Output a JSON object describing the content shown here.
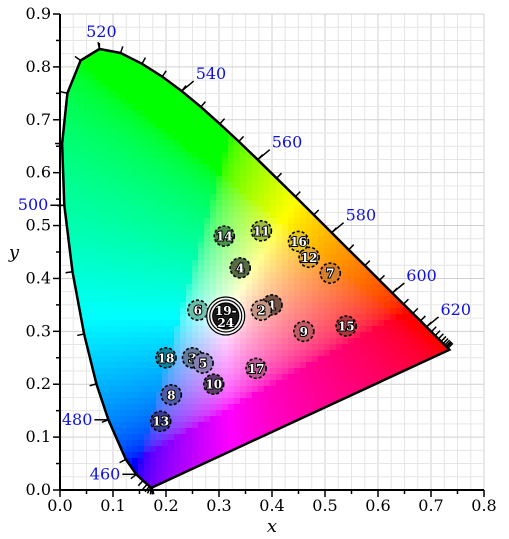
{
  "chart_data": {
    "type": "scatter",
    "title": "",
    "xlabel": "x",
    "ylabel": "y",
    "xlim": [
      0.0,
      0.8
    ],
    "ylim": [
      0.0,
      0.9
    ],
    "xticks": [
      "0.0",
      "0.1",
      "0.2",
      "0.3",
      "0.4",
      "0.5",
      "0.6",
      "0.7",
      "0.8"
    ],
    "yticks": [
      "0.0",
      "0.1",
      "0.2",
      "0.3",
      "0.4",
      "0.5",
      "0.6",
      "0.7",
      "0.8",
      "0.9"
    ],
    "grid": true,
    "spectral_locus": [
      [
        0.1741,
        0.005
      ],
      [
        0.1738,
        0.0049
      ],
      [
        0.1733,
        0.0048
      ],
      [
        0.1726,
        0.0048
      ],
      [
        0.1714,
        0.0051
      ],
      [
        0.1689,
        0.0069
      ],
      [
        0.1644,
        0.0109
      ],
      [
        0.1566,
        0.0177
      ],
      [
        0.144,
        0.0297
      ],
      [
        0.1241,
        0.0578
      ],
      [
        0.0913,
        0.1327
      ],
      [
        0.0687,
        0.2007
      ],
      [
        0.0454,
        0.295
      ],
      [
        0.0235,
        0.4127
      ],
      [
        0.0082,
        0.5384
      ],
      [
        0.0039,
        0.6548
      ],
      [
        0.0139,
        0.7502
      ],
      [
        0.0389,
        0.812
      ],
      [
        0.0743,
        0.8338
      ],
      [
        0.1142,
        0.8262
      ],
      [
        0.1547,
        0.8059
      ],
      [
        0.1929,
        0.7816
      ],
      [
        0.2296,
        0.7543
      ],
      [
        0.2658,
        0.7243
      ],
      [
        0.3016,
        0.6923
      ],
      [
        0.3373,
        0.6589
      ],
      [
        0.3731,
        0.6245
      ],
      [
        0.4087,
        0.5896
      ],
      [
        0.4441,
        0.5547
      ],
      [
        0.4788,
        0.5202
      ],
      [
        0.5125,
        0.4866
      ],
      [
        0.5448,
        0.4544
      ],
      [
        0.5752,
        0.4242
      ],
      [
        0.6029,
        0.3965
      ],
      [
        0.627,
        0.3725
      ],
      [
        0.6482,
        0.3514
      ],
      [
        0.6658,
        0.334
      ],
      [
        0.6801,
        0.3197
      ],
      [
        0.6915,
        0.3083
      ],
      [
        0.7006,
        0.2993
      ],
      [
        0.7079,
        0.292
      ],
      [
        0.714,
        0.2859
      ],
      [
        0.719,
        0.2809
      ],
      [
        0.723,
        0.277
      ],
      [
        0.726,
        0.274
      ],
      [
        0.7283,
        0.2717
      ],
      [
        0.73,
        0.27
      ],
      [
        0.732,
        0.268
      ],
      [
        0.7347,
        0.2653
      ]
    ],
    "wavelength_labels": [
      {
        "text": "460",
        "x": 0.144,
        "y": 0.0297,
        "side": "left"
      },
      {
        "text": "480",
        "x": 0.0913,
        "y": 0.1327,
        "side": "left"
      },
      {
        "text": "500",
        "x": 0.0082,
        "y": 0.5384,
        "side": "left"
      },
      {
        "text": "520",
        "x": 0.0743,
        "y": 0.8338,
        "side": "top"
      },
      {
        "text": "540",
        "x": 0.2296,
        "y": 0.7543,
        "side": "right"
      },
      {
        "text": "560",
        "x": 0.3731,
        "y": 0.6245,
        "side": "right"
      },
      {
        "text": "580",
        "x": 0.5125,
        "y": 0.4866,
        "side": "right"
      },
      {
        "text": "600",
        "x": 0.627,
        "y": 0.3725,
        "side": "right"
      },
      {
        "text": "620",
        "x": 0.6915,
        "y": 0.3083,
        "side": "right"
      }
    ],
    "patches": [
      {
        "label": "1",
        "x": 0.4,
        "y": 0.35,
        "color": "#735244"
      },
      {
        "label": "2",
        "x": 0.38,
        "y": 0.34,
        "color": "#c29682"
      },
      {
        "label": "3",
        "x": 0.25,
        "y": 0.25,
        "color": "#627a9d"
      },
      {
        "label": "4",
        "x": 0.34,
        "y": 0.42,
        "color": "#576c43"
      },
      {
        "label": "5",
        "x": 0.27,
        "y": 0.24,
        "color": "#8580b1"
      },
      {
        "label": "6",
        "x": 0.26,
        "y": 0.34,
        "color": "#67bdaa"
      },
      {
        "label": "7",
        "x": 0.51,
        "y": 0.41,
        "color": "#d67e2c"
      },
      {
        "label": "8",
        "x": 0.21,
        "y": 0.18,
        "color": "#505ba6"
      },
      {
        "label": "9",
        "x": 0.46,
        "y": 0.3,
        "color": "#c15a63"
      },
      {
        "label": "10",
        "x": 0.29,
        "y": 0.2,
        "color": "#5e3c6c"
      },
      {
        "label": "11",
        "x": 0.38,
        "y": 0.49,
        "color": "#9dbc40"
      },
      {
        "label": "12",
        "x": 0.47,
        "y": 0.44,
        "color": "#e0a32e"
      },
      {
        "label": "13",
        "x": 0.19,
        "y": 0.13,
        "color": "#383d96"
      },
      {
        "label": "14",
        "x": 0.31,
        "y": 0.48,
        "color": "#469449"
      },
      {
        "label": "15",
        "x": 0.54,
        "y": 0.31,
        "color": "#af363c"
      },
      {
        "label": "16",
        "x": 0.45,
        "y": 0.47,
        "color": "#e7c71f"
      },
      {
        "label": "17",
        "x": 0.37,
        "y": 0.23,
        "color": "#bb5695"
      },
      {
        "label": "18",
        "x": 0.2,
        "y": 0.25,
        "color": "#0885a1"
      }
    ],
    "white_point": {
      "label": "19-24",
      "x": 0.3127,
      "y": 0.329,
      "color": "#f3f3f2"
    }
  }
}
